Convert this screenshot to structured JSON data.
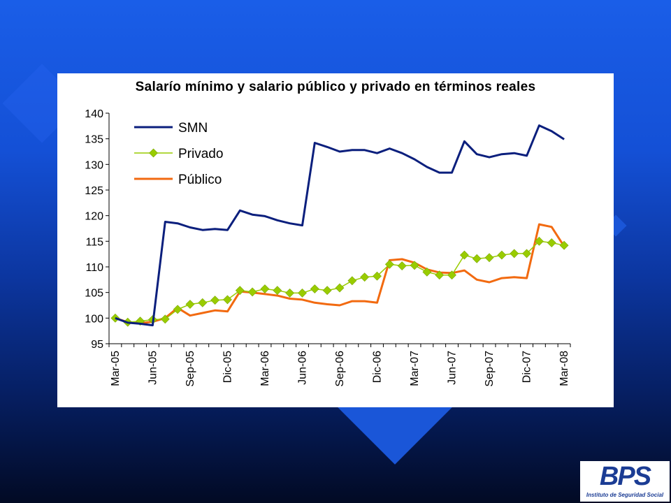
{
  "chart_data": {
    "type": "line",
    "title": "Salarío mínimo y salario público y privado en términos reales",
    "ylim": [
      95,
      140
    ],
    "yticks": [
      95,
      100,
      105,
      110,
      115,
      120,
      125,
      130,
      135,
      140
    ],
    "grid": false,
    "legend_position": "top-left",
    "x": [
      "Mar-05",
      "Abr-05",
      "May-05",
      "Jun-05",
      "Jul-05",
      "Ago-05",
      "Sep-05",
      "Oct-05",
      "Nov-05",
      "Dic-05",
      "Ene-06",
      "Feb-06",
      "Mar-06",
      "Abr-06",
      "May-06",
      "Jun-06",
      "Jul-06",
      "Ago-06",
      "Sep-06",
      "Oct-06",
      "Nov-06",
      "Dic-06",
      "Ene-07",
      "Feb-07",
      "Mar-07",
      "Abr-07",
      "May-07",
      "Jun-07",
      "Jul-07",
      "Ago-07",
      "Sep-07",
      "Oct-07",
      "Nov-07",
      "Dic-07",
      "Ene-08",
      "Feb-08",
      "Mar-08"
    ],
    "tick_labels": [
      "Mar-05",
      "Jun-05",
      "Sep-05",
      "Dic-05",
      "Mar-06",
      "Jun-06",
      "Sep-06",
      "Dic-06",
      "Mar-07",
      "Jun-07",
      "Sep-07",
      "Dic-07",
      "Mar-08"
    ],
    "series": [
      {
        "name": "SMN",
        "color": "#0b1f7d",
        "marker": "none",
        "values": [
          100,
          99.1,
          98.9,
          98.6,
          118.8,
          118.5,
          117.7,
          117.2,
          117.4,
          117.2,
          121.0,
          120.2,
          119.9,
          119.1,
          118.5,
          118.1,
          134.2,
          133.4,
          132.5,
          132.8,
          132.8,
          132.2,
          133.1,
          132.2,
          131.0,
          129.5,
          128.4,
          128.4,
          134.5,
          132.0,
          131.4,
          132.0,
          132.2,
          131.7,
          137.6,
          136.5,
          134.9
        ]
      },
      {
        "name": "Privado",
        "color": "#99cc00",
        "marker": "diamond",
        "values": [
          100,
          99.2,
          99.4,
          99.7,
          99.8,
          101.7,
          102.7,
          103.0,
          103.5,
          103.6,
          105.4,
          105.1,
          105.7,
          105.4,
          104.9,
          104.9,
          105.7,
          105.4,
          105.9,
          107.3,
          108.0,
          108.2,
          110.5,
          110.2,
          110.3,
          109.0,
          108.4,
          108.4,
          112.3,
          111.6,
          111.8,
          112.3,
          112.6,
          112.6,
          115.0,
          114.7,
          114.2
        ]
      },
      {
        "name": "Público",
        "color": "#f26a10",
        "marker": "none",
        "values": [
          100,
          99.2,
          99.0,
          99.3,
          100.0,
          102.0,
          100.5,
          101.0,
          101.5,
          101.3,
          105.2,
          105.0,
          104.7,
          104.4,
          103.8,
          103.6,
          103.0,
          102.7,
          102.5,
          103.3,
          103.3,
          103.0,
          111.3,
          111.5,
          110.8,
          109.5,
          108.9,
          108.8,
          109.3,
          107.5,
          107.0,
          107.8,
          108.0,
          107.8,
          118.3,
          117.8,
          114.0
        ]
      }
    ]
  },
  "logo": {
    "mark": "BPS",
    "tagline": "Instituto de Seguridad Social"
  }
}
